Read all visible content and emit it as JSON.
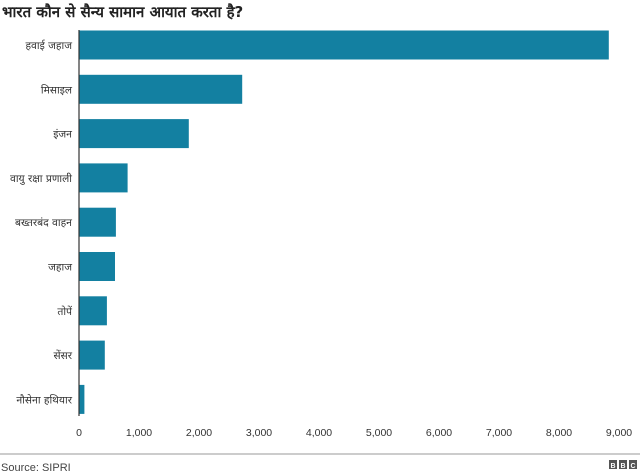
{
  "chart_data": {
    "type": "bar",
    "orientation": "horizontal",
    "title": "भारत कौन से सैन्य सामान आयात करता है?",
    "categories": [
      "हवाई जहाज",
      "मिसाइल",
      "इंजन",
      "वायु रक्षा प्रणाली",
      "बख्तरबंद वाहन",
      "जहाज",
      "तोपें",
      "सेंसर",
      "नौसेना हथियार"
    ],
    "values": [
      8830,
      2720,
      1830,
      810,
      615,
      600,
      465,
      430,
      90
    ],
    "xlim": [
      0,
      9000
    ],
    "xticks": [
      0,
      1000,
      2000,
      3000,
      4000,
      5000,
      6000,
      7000,
      8000,
      9000
    ],
    "xtick_labels": [
      "0",
      "1,000",
      "2,000",
      "3,000",
      "4,000",
      "5,000",
      "6,000",
      "7,000",
      "8,000",
      "9,000"
    ],
    "xlabel": "",
    "ylabel": "",
    "grid": false,
    "bar_color": "#1380A1"
  },
  "footer": {
    "source": "Source: SIPRI",
    "logo": "BBC"
  }
}
